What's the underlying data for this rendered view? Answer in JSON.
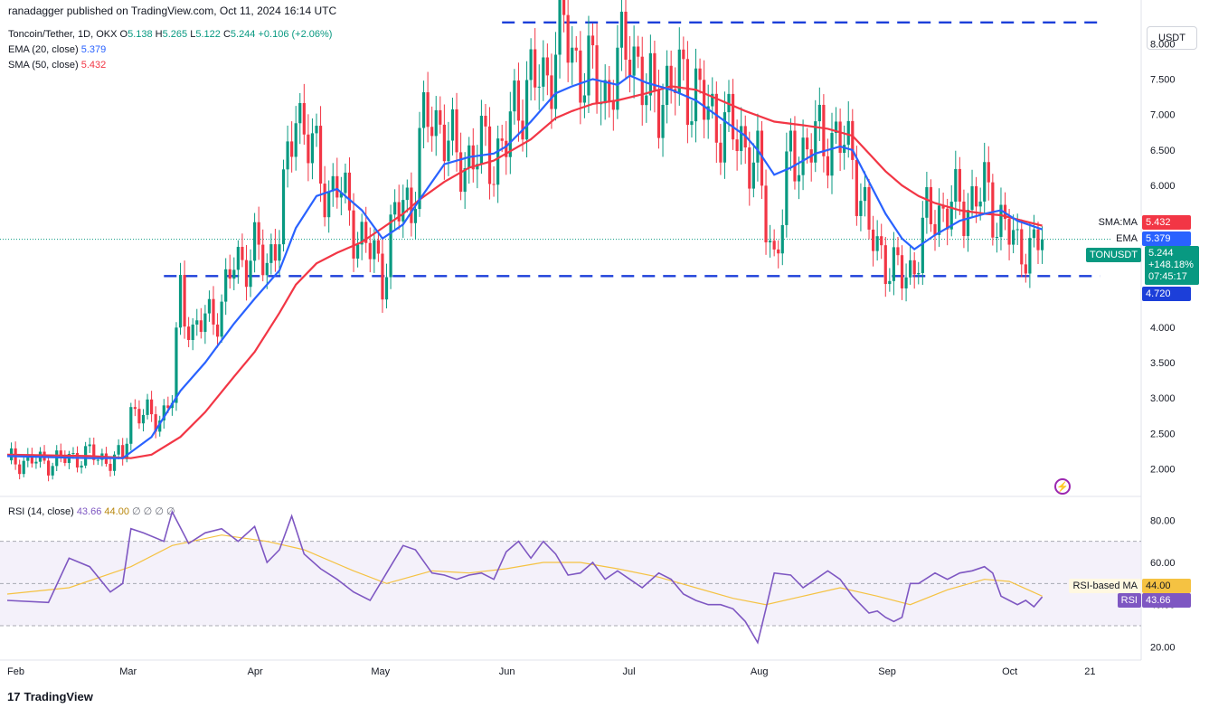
{
  "publisher_line": "ranadagger published on TradingView.com, Oct 11, 2024 16:14 UTC",
  "unit_label": "USDT",
  "brand": "TradingView",
  "legend": {
    "symbol": "Toncoin/Tether, 1D, OKX",
    "o_label": "O",
    "o": "5.138",
    "h_label": "H",
    "h": "5.265",
    "l_label": "L",
    "l": "5.122",
    "c_label": "C",
    "c": "5.244",
    "change": "+0.106 (+2.06%)",
    "ema_label": "EMA (20, close)",
    "ema_value": "5.379",
    "sma_label": "SMA (50, close)",
    "sma_value": "5.432"
  },
  "rsi_legend": {
    "label": "RSI (14, close)",
    "value": "43.66",
    "ma_value": "44.00",
    "extras": [
      "∅",
      "∅",
      "∅",
      "∅"
    ]
  },
  "price_tags": {
    "sma_label": "SMA:MA",
    "sma_value": "5.432",
    "ema_label": "EMA",
    "ema_value": "5.379",
    "ticker_label": "TONUSDT",
    "last_price": "5.244",
    "last_change": "+148.18%",
    "countdown": "07:45:17",
    "support_value": "4.720"
  },
  "rsi_tags": {
    "ma_label": "RSI-based MA",
    "ma_value": "44.00",
    "rsi_label": "RSI",
    "rsi_value": "43.66"
  },
  "colors": {
    "up": "#089981",
    "down": "#f23645",
    "ema": "#2962ff",
    "sma": "#f23645",
    "rsi": "#7e57c2",
    "rsi_ma": "#f5c242",
    "rsi_band": "#ede7f6",
    "level_line": "#1c3fd9"
  },
  "chart_data": {
    "type": "candlestick",
    "price_axis": {
      "ticks": [
        8.0,
        7.5,
        7.0,
        6.5,
        6.0,
        5.5,
        5.0,
        4.5,
        4.0,
        3.5,
        3.0,
        2.5,
        2.0
      ],
      "tick_labels": [
        "8.000",
        "7.500",
        "7.000",
        "6.500",
        "6.000",
        "5.500",
        "5.000",
        "4.500",
        "4.000",
        "3.500",
        "3.000",
        "2.500",
        "2.000"
      ],
      "range": [
        1.7,
        8.4
      ]
    },
    "x_axis": {
      "labels": [
        "Feb",
        "Mar",
        "Apr",
        "May",
        "Jun",
        "Jul",
        "Aug",
        "Sep",
        "Oct",
        "21"
      ],
      "label_days": [
        0,
        29,
        60,
        90,
        121,
        151,
        182,
        213,
        243,
        263
      ],
      "start": "2024-02-01"
    },
    "levels": [
      {
        "value": 8.3,
        "from_day": 120,
        "to_day": 265
      },
      {
        "value": 4.72,
        "from_day": 38,
        "to_day": 265
      }
    ],
    "close_path": [
      [
        0,
        2.12
      ],
      [
        10,
        2.1
      ],
      [
        20,
        2.2
      ],
      [
        25,
        2.12
      ],
      [
        28,
        2.15
      ],
      [
        30,
        2.85
      ],
      [
        35,
        2.7
      ],
      [
        38,
        2.8
      ],
      [
        40,
        3.0
      ],
      [
        42,
        4.5
      ],
      [
        45,
        3.9
      ],
      [
        48,
        4.1
      ],
      [
        52,
        4.3
      ],
      [
        55,
        4.9
      ],
      [
        58,
        5.0
      ],
      [
        60,
        5.05
      ],
      [
        63,
        4.9
      ],
      [
        66,
        5.4
      ],
      [
        68,
        6.2
      ],
      [
        70,
        7.2
      ],
      [
        72,
        6.8
      ],
      [
        75,
        6.3
      ],
      [
        78,
        5.9
      ],
      [
        80,
        6.0
      ],
      [
        83,
        5.6
      ],
      [
        86,
        5.2
      ],
      [
        89,
        5.0
      ],
      [
        91,
        4.75
      ],
      [
        93,
        5.3
      ],
      [
        96,
        5.8
      ],
      [
        98,
        5.7
      ],
      [
        100,
        6.6
      ],
      [
        103,
        7.0
      ],
      [
        106,
        6.8
      ],
      [
        109,
        6.3
      ],
      [
        112,
        6.4
      ],
      [
        115,
        6.5
      ],
      [
        118,
        6.4
      ],
      [
        121,
        6.6
      ],
      [
        124,
        7.2
      ],
      [
        127,
        7.5
      ],
      [
        130,
        7.4
      ],
      [
        133,
        8.0
      ],
      [
        135,
        8.2
      ],
      [
        137,
        7.8
      ],
      [
        139,
        7.7
      ],
      [
        142,
        7.5
      ],
      [
        145,
        7.3
      ],
      [
        148,
        7.6
      ],
      [
        151,
        8.1
      ],
      [
        153,
        7.7
      ],
      [
        155,
        7.2
      ],
      [
        158,
        7.3
      ],
      [
        161,
        7.4
      ],
      [
        164,
        7.5
      ],
      [
        167,
        7.3
      ],
      [
        170,
        7.0
      ],
      [
        173,
        6.9
      ],
      [
        176,
        6.7
      ],
      [
        179,
        6.6
      ],
      [
        182,
        6.2
      ],
      [
        184,
        5.5
      ],
      [
        186,
        5.0
      ],
      [
        188,
        5.6
      ],
      [
        190,
        6.4
      ],
      [
        193,
        6.5
      ],
      [
        196,
        6.6
      ],
      [
        199,
        6.7
      ],
      [
        202,
        6.6
      ],
      [
        205,
        6.4
      ],
      [
        207,
        5.9
      ],
      [
        209,
        5.3
      ],
      [
        211,
        5.1
      ],
      [
        213,
        5.0
      ],
      [
        215,
        4.8
      ],
      [
        217,
        4.7
      ],
      [
        219,
        4.8
      ],
      [
        221,
        5.1
      ],
      [
        223,
        5.5
      ],
      [
        225,
        5.6
      ],
      [
        228,
        5.7
      ],
      [
        231,
        5.7
      ],
      [
        234,
        5.8
      ],
      [
        237,
        5.9
      ],
      [
        239,
        5.7
      ],
      [
        241,
        5.5
      ],
      [
        243,
        5.3
      ],
      [
        245,
        5.1
      ],
      [
        247,
        5.2
      ],
      [
        249,
        5.05
      ],
      [
        251,
        5.24
      ]
    ],
    "ema_20": [
      [
        0,
        2.18
      ],
      [
        20,
        2.15
      ],
      [
        28,
        2.15
      ],
      [
        35,
        2.45
      ],
      [
        42,
        3.1
      ],
      [
        48,
        3.5
      ],
      [
        55,
        4.05
      ],
      [
        60,
        4.4
      ],
      [
        66,
        4.8
      ],
      [
        70,
        5.4
      ],
      [
        75,
        5.85
      ],
      [
        80,
        5.95
      ],
      [
        86,
        5.65
      ],
      [
        91,
        5.25
      ],
      [
        96,
        5.45
      ],
      [
        100,
        5.8
      ],
      [
        106,
        6.3
      ],
      [
        112,
        6.4
      ],
      [
        118,
        6.45
      ],
      [
        121,
        6.55
      ],
      [
        127,
        6.9
      ],
      [
        133,
        7.3
      ],
      [
        137,
        7.4
      ],
      [
        142,
        7.5
      ],
      [
        148,
        7.42
      ],
      [
        151,
        7.55
      ],
      [
        155,
        7.45
      ],
      [
        161,
        7.35
      ],
      [
        167,
        7.2
      ],
      [
        173,
        6.95
      ],
      [
        179,
        6.7
      ],
      [
        182,
        6.5
      ],
      [
        186,
        6.15
      ],
      [
        190,
        6.25
      ],
      [
        196,
        6.45
      ],
      [
        202,
        6.55
      ],
      [
        205,
        6.5
      ],
      [
        209,
        6.05
      ],
      [
        213,
        5.6
      ],
      [
        217,
        5.25
      ],
      [
        220,
        5.1
      ],
      [
        225,
        5.3
      ],
      [
        231,
        5.5
      ],
      [
        237,
        5.6
      ],
      [
        241,
        5.65
      ],
      [
        245,
        5.5
      ],
      [
        251,
        5.379
      ]
    ],
    "sma_50": [
      [
        0,
        2.2
      ],
      [
        20,
        2.18
      ],
      [
        30,
        2.15
      ],
      [
        35,
        2.2
      ],
      [
        42,
        2.45
      ],
      [
        48,
        2.8
      ],
      [
        55,
        3.3
      ],
      [
        60,
        3.65
      ],
      [
        66,
        4.2
      ],
      [
        70,
        4.6
      ],
      [
        75,
        4.9
      ],
      [
        80,
        5.05
      ],
      [
        86,
        5.2
      ],
      [
        91,
        5.4
      ],
      [
        96,
        5.6
      ],
      [
        100,
        5.8
      ],
      [
        106,
        6.05
      ],
      [
        112,
        6.25
      ],
      [
        118,
        6.35
      ],
      [
        121,
        6.45
      ],
      [
        127,
        6.65
      ],
      [
        133,
        6.95
      ],
      [
        137,
        7.05
      ],
      [
        142,
        7.15
      ],
      [
        148,
        7.2
      ],
      [
        155,
        7.3
      ],
      [
        161,
        7.4
      ],
      [
        167,
        7.35
      ],
      [
        173,
        7.2
      ],
      [
        179,
        7.05
      ],
      [
        186,
        6.9
      ],
      [
        193,
        6.85
      ],
      [
        199,
        6.8
      ],
      [
        205,
        6.7
      ],
      [
        209,
        6.45
      ],
      [
        213,
        6.2
      ],
      [
        217,
        6.0
      ],
      [
        221,
        5.85
      ],
      [
        225,
        5.75
      ],
      [
        231,
        5.65
      ],
      [
        237,
        5.6
      ],
      [
        241,
        5.58
      ],
      [
        245,
        5.52
      ],
      [
        251,
        5.432
      ]
    ],
    "rsi_axis": {
      "ticks": [
        80,
        60,
        40,
        20
      ],
      "tick_labels": [
        "80.00",
        "60.00",
        "40.00",
        "20.00"
      ],
      "range": [
        15,
        90
      ],
      "band": [
        30,
        70
      ]
    },
    "rsi_14": [
      [
        0,
        42
      ],
      [
        10,
        41
      ],
      [
        15,
        62
      ],
      [
        20,
        58
      ],
      [
        25,
        46
      ],
      [
        28,
        50
      ],
      [
        30,
        76
      ],
      [
        33,
        74
      ],
      [
        38,
        70
      ],
      [
        40,
        84
      ],
      [
        44,
        69
      ],
      [
        48,
        74
      ],
      [
        52,
        76
      ],
      [
        56,
        70
      ],
      [
        60,
        77
      ],
      [
        63,
        60
      ],
      [
        66,
        66
      ],
      [
        69,
        82
      ],
      [
        72,
        64
      ],
      [
        76,
        57
      ],
      [
        80,
        52
      ],
      [
        84,
        46
      ],
      [
        88,
        42
      ],
      [
        92,
        55
      ],
      [
        96,
        68
      ],
      [
        99,
        66
      ],
      [
        103,
        55
      ],
      [
        106,
        54
      ],
      [
        109,
        52
      ],
      [
        112,
        54
      ],
      [
        115,
        55
      ],
      [
        118,
        52
      ],
      [
        121,
        65
      ],
      [
        124,
        70
      ],
      [
        127,
        62
      ],
      [
        130,
        70
      ],
      [
        133,
        64
      ],
      [
        136,
        54
      ],
      [
        139,
        55
      ],
      [
        142,
        60
      ],
      [
        145,
        52
      ],
      [
        148,
        56
      ],
      [
        151,
        52
      ],
      [
        154,
        48
      ],
      [
        158,
        55
      ],
      [
        161,
        52
      ],
      [
        164,
        45
      ],
      [
        167,
        42
      ],
      [
        170,
        40
      ],
      [
        173,
        40
      ],
      [
        176,
        38
      ],
      [
        179,
        32
      ],
      [
        182,
        22
      ],
      [
        184,
        38
      ],
      [
        186,
        55
      ],
      [
        190,
        54
      ],
      [
        193,
        48
      ],
      [
        196,
        52
      ],
      [
        199,
        56
      ],
      [
        202,
        52
      ],
      [
        205,
        44
      ],
      [
        207,
        40
      ],
      [
        209,
        36
      ],
      [
        211,
        37
      ],
      [
        213,
        34
      ],
      [
        215,
        32
      ],
      [
        217,
        34
      ],
      [
        219,
        50
      ],
      [
        221,
        50
      ],
      [
        225,
        55
      ],
      [
        228,
        52
      ],
      [
        231,
        55
      ],
      [
        234,
        56
      ],
      [
        237,
        58
      ],
      [
        239,
        55
      ],
      [
        241,
        44
      ],
      [
        243,
        42
      ],
      [
        245,
        40
      ],
      [
        247,
        42
      ],
      [
        249,
        39
      ],
      [
        251,
        43.66
      ]
    ],
    "rsi_ma": [
      [
        0,
        45
      ],
      [
        15,
        48
      ],
      [
        30,
        58
      ],
      [
        40,
        68
      ],
      [
        52,
        73
      ],
      [
        63,
        70
      ],
      [
        72,
        66
      ],
      [
        84,
        56
      ],
      [
        92,
        50
      ],
      [
        103,
        56
      ],
      [
        112,
        55
      ],
      [
        121,
        57
      ],
      [
        130,
        60
      ],
      [
        139,
        60
      ],
      [
        148,
        57
      ],
      [
        158,
        53
      ],
      [
        167,
        48
      ],
      [
        176,
        43
      ],
      [
        184,
        40
      ],
      [
        193,
        44
      ],
      [
        202,
        48
      ],
      [
        211,
        44
      ],
      [
        219,
        40
      ],
      [
        228,
        47
      ],
      [
        237,
        52
      ],
      [
        243,
        51
      ],
      [
        251,
        44.0
      ]
    ]
  }
}
